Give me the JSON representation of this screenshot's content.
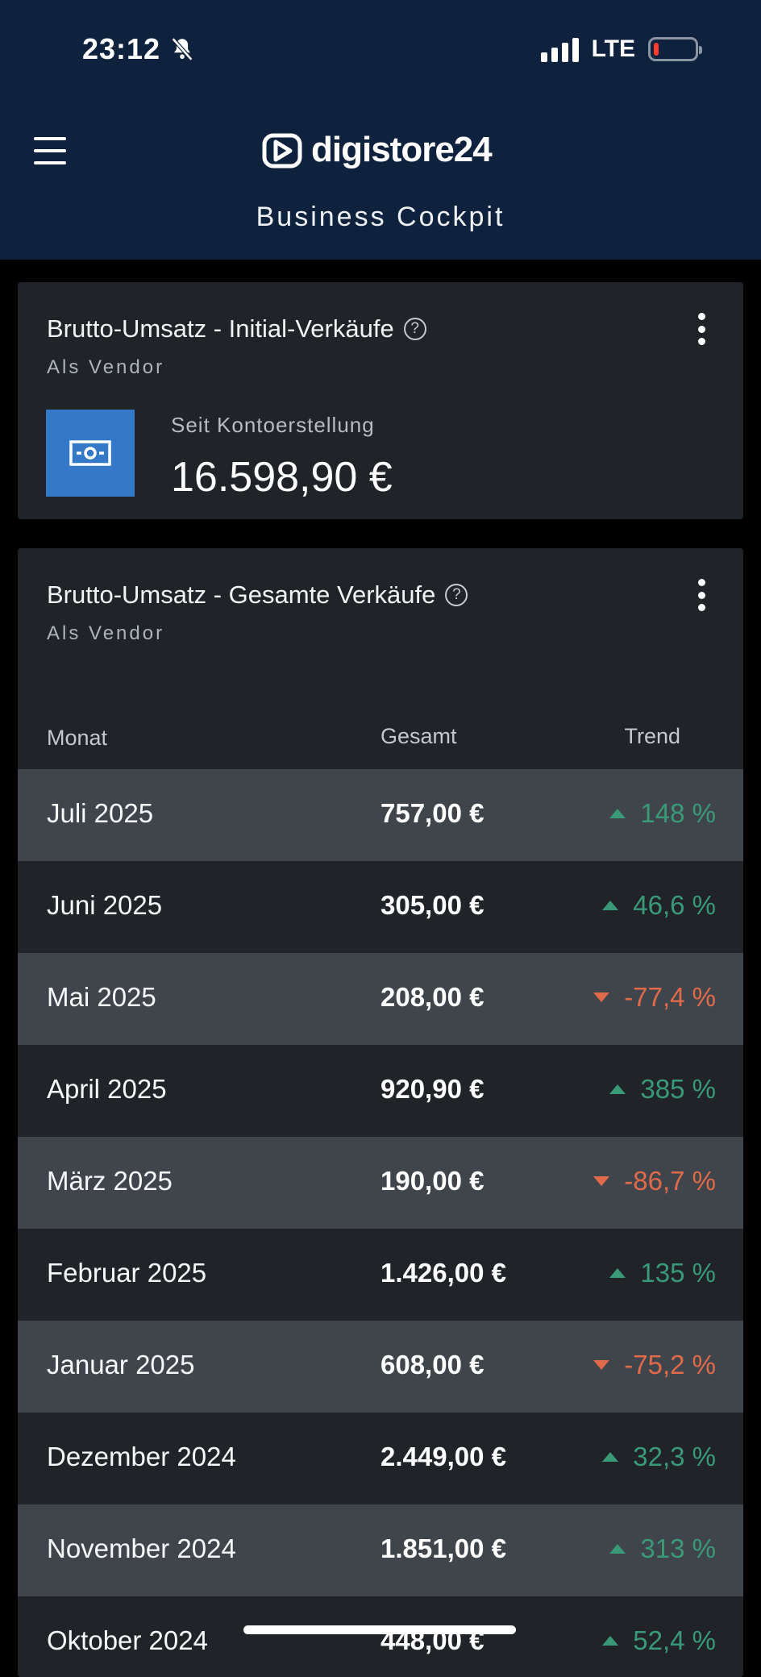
{
  "status_bar": {
    "time": "23:12",
    "network": "LTE"
  },
  "header": {
    "brand": "digistore24",
    "title": "Business Cockpit"
  },
  "card_initial": {
    "title": "Brutto-Umsatz - Initial-Verkäufe",
    "subtitle": "Als Vendor",
    "period_label": "Seit Kontoerstellung",
    "amount": "16.598,90 €"
  },
  "card_total": {
    "title": "Brutto-Umsatz - Gesamte Verkäufe",
    "subtitle": "Als Vendor",
    "columns": {
      "month": "Monat",
      "total": "Gesamt",
      "trend": "Trend"
    },
    "rows": [
      {
        "month": "Juli 2025",
        "total": "757,00 €",
        "trend": "148 %",
        "direction": "up"
      },
      {
        "month": "Juni 2025",
        "total": "305,00 €",
        "trend": "46,6 %",
        "direction": "up"
      },
      {
        "month": "Mai 2025",
        "total": "208,00 €",
        "trend": "-77,4 %",
        "direction": "down"
      },
      {
        "month": "April 2025",
        "total": "920,90 €",
        "trend": "385 %",
        "direction": "up"
      },
      {
        "month": "März 2025",
        "total": "190,00 €",
        "trend": "-86,7 %",
        "direction": "down"
      },
      {
        "month": "Februar 2025",
        "total": "1.426,00 €",
        "trend": "135 %",
        "direction": "up"
      },
      {
        "month": "Januar 2025",
        "total": "608,00 €",
        "trend": "-75,2 %",
        "direction": "down"
      },
      {
        "month": "Dezember 2024",
        "total": "2.449,00 €",
        "trend": "32,3 %",
        "direction": "up"
      },
      {
        "month": "November 2024",
        "total": "1.851,00 €",
        "trend": "313 %",
        "direction": "up"
      },
      {
        "month": "Oktober 2024",
        "total": "448,00 €",
        "trend": "52,4 %",
        "direction": "up"
      }
    ]
  },
  "colors": {
    "header_bg": "#0f223d",
    "card_bg": "#202429",
    "up": "#3a9a78",
    "down": "#e06a4a",
    "tile": "#3478c8"
  }
}
